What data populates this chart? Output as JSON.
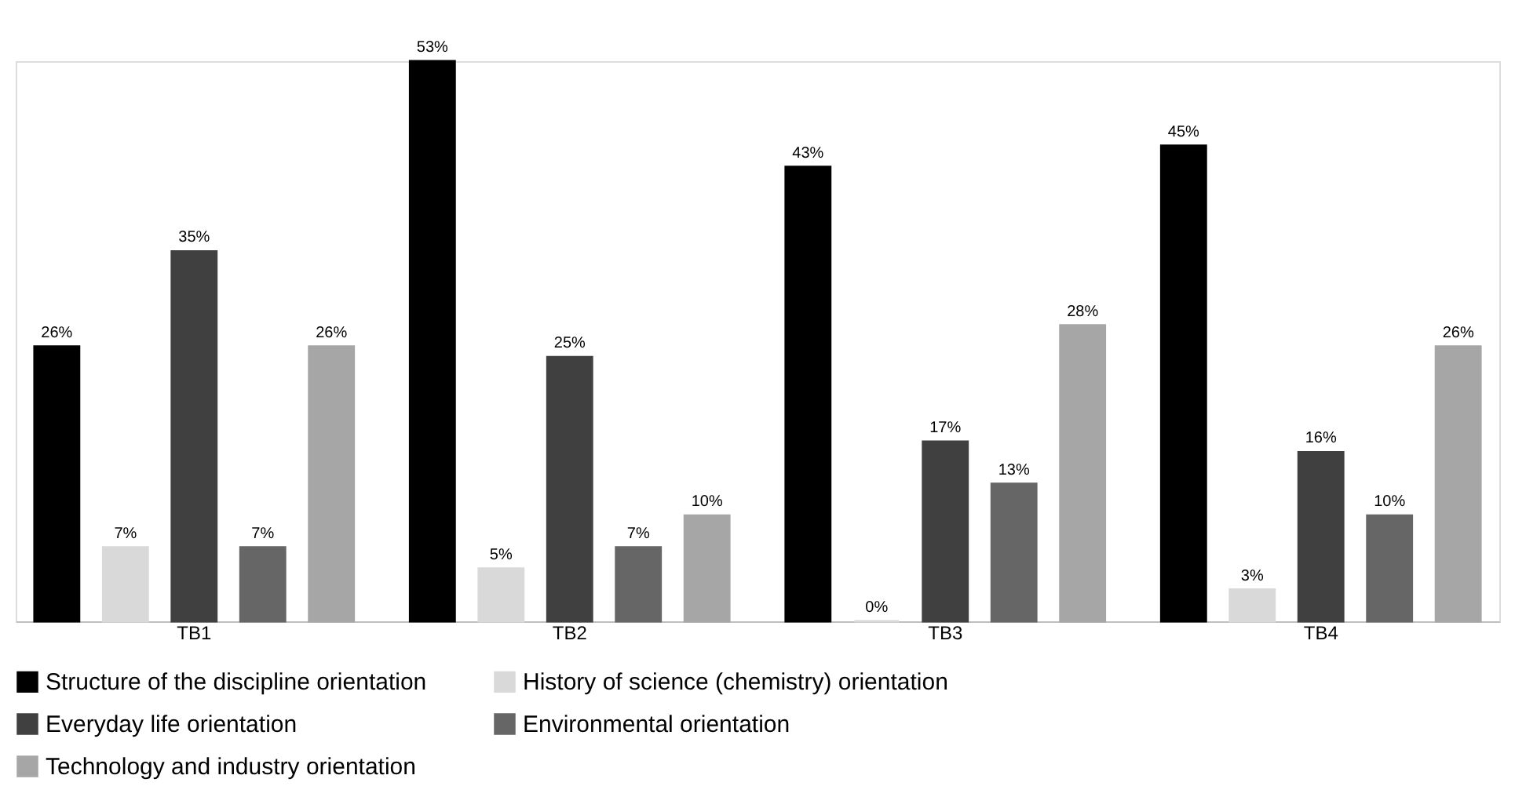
{
  "chart_data": {
    "type": "bar",
    "categories": [
      "TB1",
      "TB2",
      "TB3",
      "TB4"
    ],
    "series": [
      {
        "name": "Structure of the discipline orientation",
        "color": "#000000",
        "values": [
          26,
          53,
          43,
          45
        ],
        "value_labels": [
          "26%",
          "53%",
          "43%",
          "45%"
        ]
      },
      {
        "name": "History of science (chemistry) orientation",
        "color": "#d9d9d9",
        "values": [
          7,
          5,
          0,
          3
        ],
        "value_labels": [
          "7%",
          "5%",
          "0%",
          "3%"
        ]
      },
      {
        "name": "Everyday life orientation",
        "color": "#404040",
        "values": [
          35,
          25,
          17,
          16
        ],
        "value_labels": [
          "35%",
          "25%",
          "17%",
          "16%"
        ]
      },
      {
        "name": "Environmental orientation",
        "color": "#666666",
        "values": [
          7,
          7,
          13,
          10
        ],
        "value_labels": [
          "7%",
          "7%",
          "13%",
          "10%"
        ]
      },
      {
        "name": "Technology and industry orientation",
        "color": "#a6a6a6",
        "values": [
          26,
          10,
          28,
          26
        ],
        "value_labels": [
          "26%",
          "10%",
          "28%",
          "26%"
        ]
      }
    ],
    "legend": "bottom",
    "grid": false
  }
}
